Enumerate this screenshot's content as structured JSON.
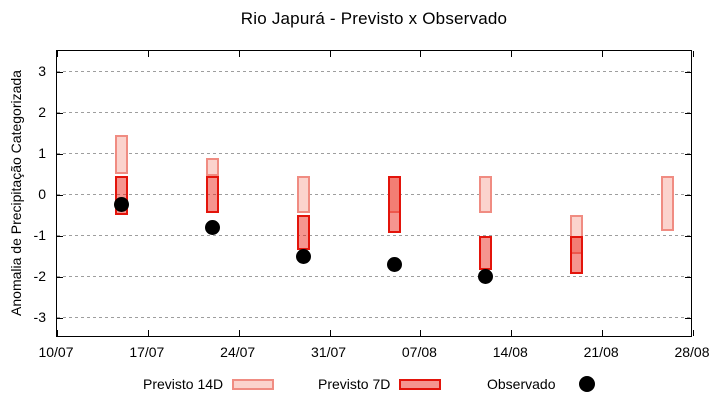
{
  "chart_data": {
    "type": "candlestick",
    "title": "Rio Japurá - Previsto x Observado",
    "ylabel": "Anomalia de Precipitação Categorizada",
    "ylim": [
      -3.5,
      3.5
    ],
    "yticks": [
      -3,
      -2,
      -1,
      0,
      1,
      2,
      3
    ],
    "xticks": [
      {
        "day": 0,
        "label": "10/07"
      },
      {
        "day": 7,
        "label": "17/07"
      },
      {
        "day": 14,
        "label": "24/07"
      },
      {
        "day": 21,
        "label": "31/07"
      },
      {
        "day": 28,
        "label": "07/08"
      },
      {
        "day": 35,
        "label": "14/08"
      },
      {
        "day": 42,
        "label": "21/08"
      },
      {
        "day": 49,
        "label": "28/08"
      }
    ],
    "x_span_days": 49,
    "grid": "horizontal-dashed-gray",
    "legend_position": "bottom",
    "series": [
      {
        "name": "Previsto 14D",
        "type": "box",
        "fill": "#fbd3cd",
        "border": "#f08c82"
      },
      {
        "name": "Previsto 7D",
        "type": "box",
        "fill": "rgba(233,30,18,0.47)",
        "border": "#e3140b"
      },
      {
        "name": "Observado",
        "type": "point",
        "color": "#000000"
      }
    ],
    "clusters": [
      {
        "date": "15/07",
        "day": 5,
        "previsto_14d": [
          0.5,
          1.45
        ],
        "previsto_7d": [
          -0.5,
          0.45
        ],
        "observado": -0.25
      },
      {
        "date": "22/07",
        "day": 12,
        "previsto_14d": [
          0.45,
          0.9
        ],
        "previsto_7d": [
          -0.45,
          0.45
        ],
        "observado": -0.8
      },
      {
        "date": "29/07",
        "day": 19,
        "previsto_14d": [
          -0.45,
          0.45
        ],
        "previsto_7d": [
          -1.35,
          -0.5
        ],
        "observado": -1.5
      },
      {
        "date": "05/08",
        "day": 26,
        "previsto_14d": [
          -0.45,
          0.45
        ],
        "previsto_7d": [
          -0.95,
          0.45
        ],
        "observado": -1.7
      },
      {
        "date": "12/08",
        "day": 33,
        "previsto_14d": [
          -0.45,
          0.45
        ],
        "previsto_7d": [
          -1.85,
          -1.0
        ],
        "observado": -2.0
      },
      {
        "date": "19/08",
        "day": 40,
        "previsto_14d": [
          -1.45,
          -0.5
        ],
        "previsto_7d": [
          -1.95,
          -1.0
        ],
        "observado": null
      },
      {
        "date": "26/08",
        "day": 47,
        "previsto_14d": [
          -0.9,
          0.45
        ],
        "previsto_7d": null,
        "observado": null
      }
    ]
  }
}
